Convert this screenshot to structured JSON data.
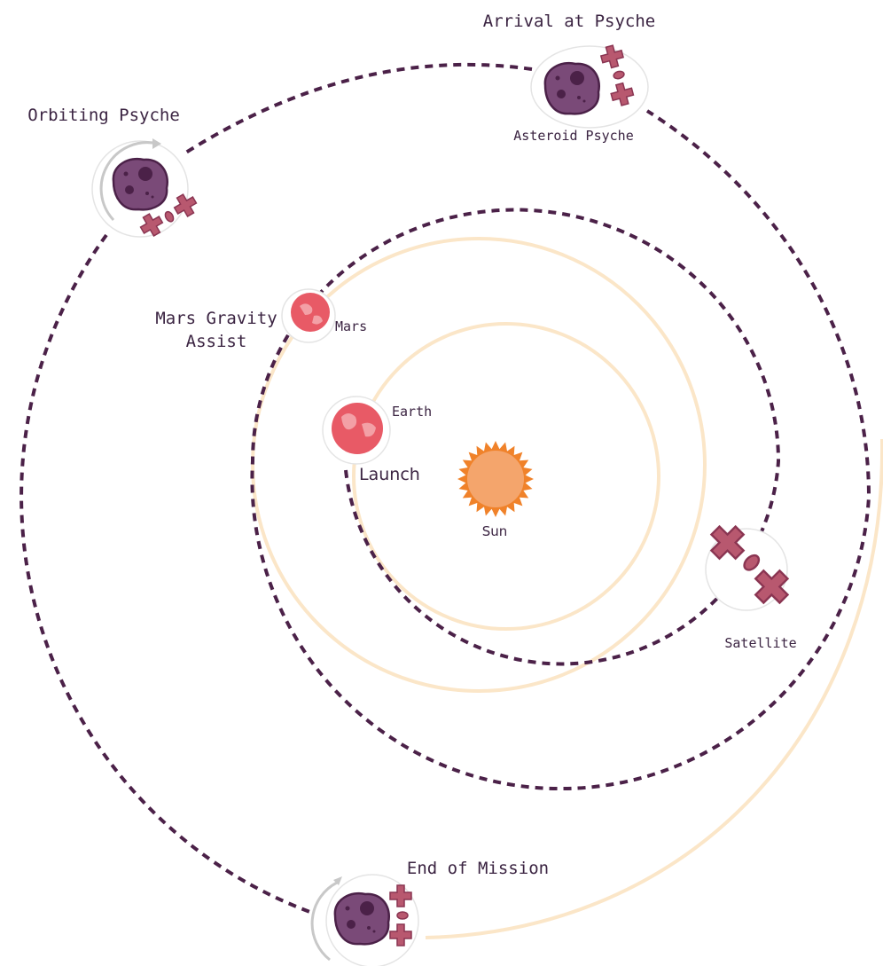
{
  "diagram": {
    "arrival": "Arrival at Psyche",
    "asteroid_psyche": "Asteroid Psyche",
    "orbiting": "Orbiting Psyche",
    "mars_gravity_assist": [
      "Mars Gravity",
      "Assist"
    ],
    "mars": "Mars",
    "earth": "Earth",
    "launch": "Launch",
    "sun": "Sun",
    "satellite": "Satellite",
    "end_of_mission": "End of Mission"
  }
}
